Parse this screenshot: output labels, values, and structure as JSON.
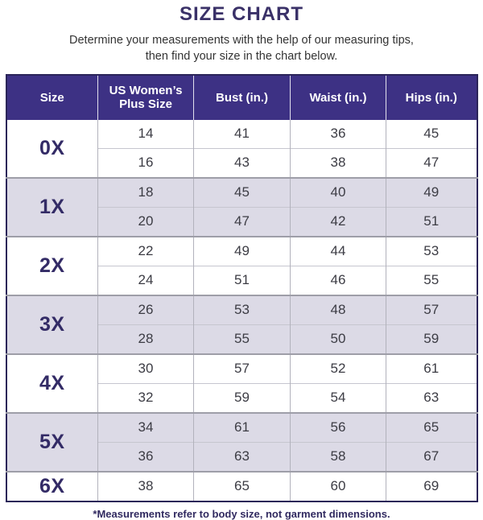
{
  "page": {
    "title": "SIZE CHART",
    "subtitle_line1": "Determine your measurements with the help of our measuring tips,",
    "subtitle_line2": "then find your size in the chart below.",
    "footnote": "*Measurements refer to body size, not garment dimensions."
  },
  "colors": {
    "header_bg": "#3d3184",
    "header_text": "#ffffff",
    "accent_dark": "#332b66",
    "outer_border": "#2b2559",
    "shaded_row_bg": "#dcdae6",
    "grid_line": "#9e9ea8",
    "data_text": "#3c3c44"
  },
  "chart_data": {
    "type": "table",
    "title": "SIZE CHART",
    "subtitle": "Determine your measurements with the help of our measuring tips, then find your size in the chart below.",
    "columns": [
      "Size",
      "US Women’s Plus Size",
      "Bust (in.)",
      "Waist (in.)",
      "Hips (in.)"
    ],
    "groups": [
      {
        "size": "0X",
        "shaded": false,
        "rows": [
          [
            14,
            41,
            36,
            45
          ],
          [
            16,
            43,
            38,
            47
          ]
        ]
      },
      {
        "size": "1X",
        "shaded": true,
        "rows": [
          [
            18,
            45,
            40,
            49
          ],
          [
            20,
            47,
            42,
            51
          ]
        ]
      },
      {
        "size": "2X",
        "shaded": false,
        "rows": [
          [
            22,
            49,
            44,
            53
          ],
          [
            24,
            51,
            46,
            55
          ]
        ]
      },
      {
        "size": "3X",
        "shaded": true,
        "rows": [
          [
            26,
            53,
            48,
            57
          ],
          [
            28,
            55,
            50,
            59
          ]
        ]
      },
      {
        "size": "4X",
        "shaded": false,
        "rows": [
          [
            30,
            57,
            52,
            61
          ],
          [
            32,
            59,
            54,
            63
          ]
        ]
      },
      {
        "size": "5X",
        "shaded": true,
        "rows": [
          [
            34,
            61,
            56,
            65
          ],
          [
            36,
            63,
            58,
            67
          ]
        ]
      },
      {
        "size": "6X",
        "shaded": false,
        "rows": [
          [
            38,
            65,
            60,
            69
          ]
        ]
      }
    ],
    "footnote": "*Measurements refer to body size, not garment dimensions."
  }
}
